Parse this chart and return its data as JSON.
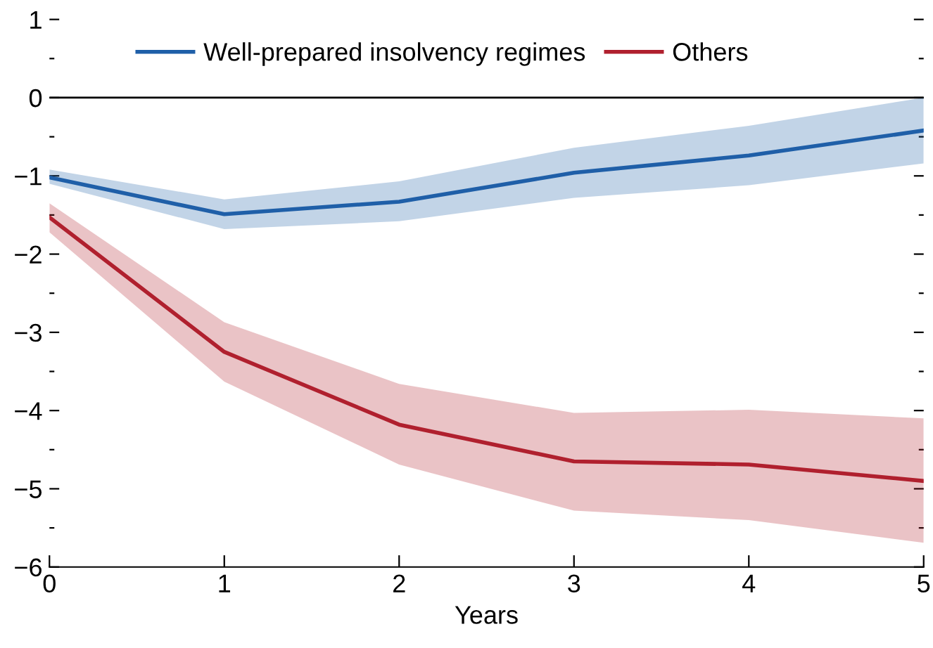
{
  "chart_data": {
    "type": "line",
    "xlabel": "Years",
    "x": [
      0,
      1,
      2,
      3,
      4,
      5
    ],
    "series": [
      {
        "name": "Well-prepared insolvency regimes",
        "color": "#1f5fa8",
        "values": [
          -1.02,
          -1.49,
          -1.33,
          -0.96,
          -0.74,
          -0.42
        ],
        "lower": [
          -1.1,
          -1.68,
          -1.58,
          -1.28,
          -1.12,
          -0.84
        ],
        "upper": [
          -0.92,
          -1.3,
          -1.07,
          -0.64,
          -0.36,
          0.0
        ]
      },
      {
        "name": "Others",
        "color": "#b0202e",
        "values": [
          -1.53,
          -3.25,
          -4.18,
          -4.65,
          -4.69,
          -4.9
        ],
        "lower": [
          -1.72,
          -3.63,
          -4.69,
          -5.28,
          -5.4,
          -5.69
        ],
        "upper": [
          -1.35,
          -2.87,
          -3.66,
          -4.03,
          -3.99,
          -4.1
        ]
      }
    ],
    "xlim": [
      0,
      5
    ],
    "xticks": [
      0,
      1,
      2,
      3,
      4,
      5
    ],
    "ylim": [
      -6,
      1
    ],
    "yticks": [
      1,
      {
        "value": 0.5,
        "label": null
      },
      0,
      {
        "value": -0.5,
        "label": null
      },
      {
        "value": -1,
        "label": "−1"
      },
      {
        "value": -1.5,
        "label": null
      },
      {
        "value": -2,
        "label": "−2"
      },
      {
        "value": -2.5,
        "label": null
      },
      {
        "value": -3,
        "label": "−3"
      },
      {
        "value": -3.5,
        "label": null
      },
      {
        "value": -4,
        "label": "−4"
      },
      {
        "value": -4.5,
        "label": null
      },
      {
        "value": -5,
        "label": "−5"
      },
      {
        "value": -5.5,
        "label": null
      },
      {
        "value": -6,
        "label": "−6"
      }
    ],
    "ref_lines": [
      {
        "axis": "y",
        "value": 0,
        "color": "#000000"
      }
    ],
    "legend": "top",
    "grid": false,
    "marker": "none",
    "line_style": "solid"
  }
}
